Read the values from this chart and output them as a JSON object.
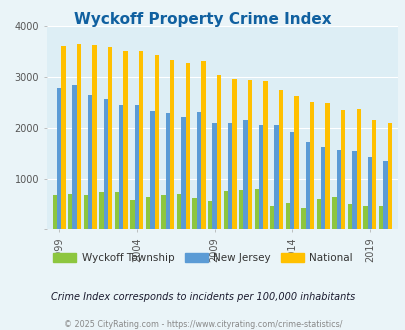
{
  "title": "Wyckoff Property Crime Index",
  "title_color": "#1060a0",
  "subtitle": "Crime Index corresponds to incidents per 100,000 inhabitants",
  "footer": "© 2025 CityRating.com - https://www.cityrating.com/crime-statistics/",
  "years": [
    1999,
    2000,
    2001,
    2002,
    2003,
    2004,
    2005,
    2006,
    2007,
    2008,
    2009,
    2010,
    2011,
    2012,
    2013,
    2014,
    2015,
    2016,
    2017,
    2018,
    2019,
    2020
  ],
  "wyckoff": [
    680,
    700,
    680,
    740,
    740,
    580,
    640,
    680,
    700,
    610,
    550,
    750,
    780,
    800,
    470,
    520,
    430,
    600,
    640,
    490,
    470,
    470
  ],
  "nj": [
    2780,
    2840,
    2650,
    2560,
    2460,
    2450,
    2340,
    2300,
    2220,
    2310,
    2090,
    2090,
    2150,
    2050,
    2060,
    1920,
    1720,
    1630,
    1560,
    1550,
    1420,
    1350
  ],
  "national": [
    3620,
    3660,
    3640,
    3600,
    3520,
    3510,
    3440,
    3340,
    3280,
    3320,
    3040,
    2960,
    2940,
    2920,
    2740,
    2620,
    2510,
    2490,
    2360,
    2370,
    2150,
    2100
  ],
  "wyckoff_color": "#8dc63f",
  "nj_color": "#5b9bd5",
  "national_color": "#ffc000",
  "bg_color": "#eaf4f8",
  "plot_bg": "#ddeef5",
  "ylim": [
    0,
    4000
  ],
  "yticks": [
    0,
    1000,
    2000,
    3000,
    4000
  ],
  "xtick_years": [
    1999,
    2004,
    2009,
    2014,
    2019
  ],
  "bar_width": 0.28,
  "subtitle_color": "#1a1a2e",
  "footer_color": "#888888",
  "legend_text_color": "#333333"
}
